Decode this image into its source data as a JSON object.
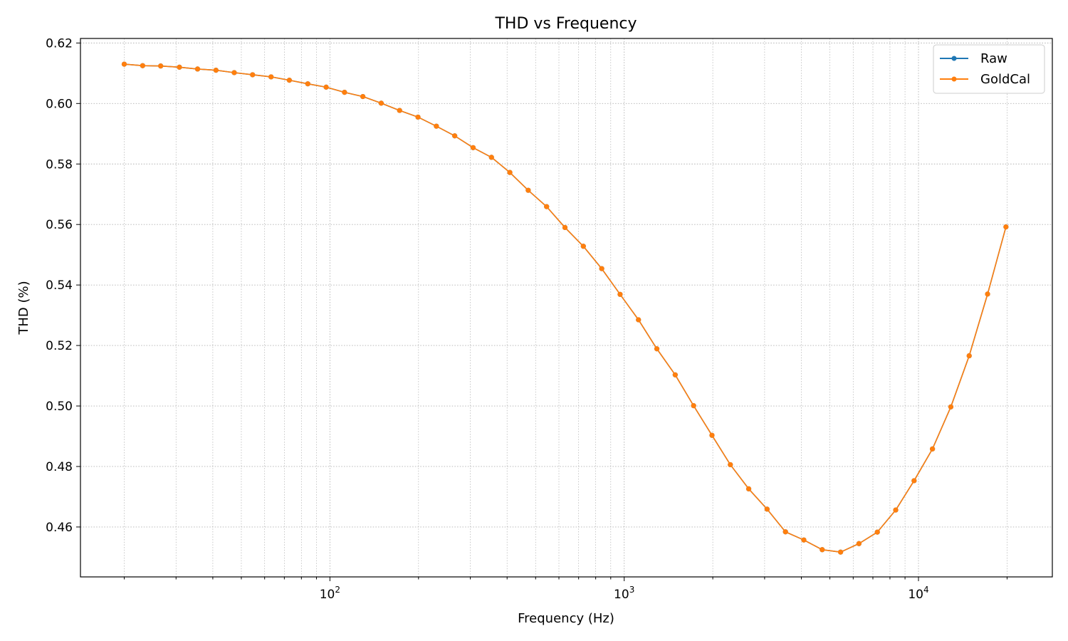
{
  "chart_data": {
    "type": "line",
    "title": "THD vs Frequency",
    "xlabel": "Frequency (Hz)",
    "ylabel": "THD (%)",
    "xscale": "log",
    "xlim": [
      14.2,
      28500
    ],
    "ylim": [
      0.4435,
      0.6215
    ],
    "grid": true,
    "legend_position": "top-right",
    "x_ticks": [
      {
        "value": 100,
        "base": "10",
        "exp": "2"
      },
      {
        "value": 1000,
        "base": "10",
        "exp": "3"
      },
      {
        "value": 10000,
        "base": "10",
        "exp": "4"
      }
    ],
    "y_ticks": [
      "0.46",
      "0.48",
      "0.50",
      "0.52",
      "0.54",
      "0.56",
      "0.58",
      "0.60",
      "0.62"
    ],
    "series": [
      {
        "name": "Raw",
        "color": "#1f77b4",
        "x": [
          20,
          23.1,
          26.6,
          30.8,
          35.5,
          41.0,
          47.3,
          54.6,
          63.1,
          72.8,
          84.1,
          97.1,
          112.1,
          129.4,
          149.4,
          172.5,
          199.2,
          230.0,
          265.5,
          306.6,
          354.0,
          408.7,
          471.9,
          544.9,
          629.1,
          726.4,
          838.7,
          968.4,
          1118.1,
          1291.0,
          1490.6,
          1721.1,
          1987.2,
          2294.5,
          2649.3,
          3058.8,
          3531.7,
          4077.8,
          4708.3,
          5436.2,
          6276.7,
          7247.2,
          8367.7,
          9661.4,
          11155.2,
          12880.0,
          14871.4,
          17170.7,
          19825.4
        ],
        "values": [
          0.613,
          0.6125,
          0.6124,
          0.612,
          0.6114,
          0.611,
          0.6102,
          0.6095,
          0.6088,
          0.6077,
          0.6065,
          0.6054,
          0.6037,
          0.6023,
          0.6001,
          0.5977,
          0.5955,
          0.5925,
          0.5893,
          0.5854,
          0.5822,
          0.5772,
          0.5713,
          0.5659,
          0.559,
          0.5528,
          0.5454,
          0.5369,
          0.5285,
          0.5189,
          0.5103,
          0.5001,
          0.4903,
          0.4806,
          0.4726,
          0.4659,
          0.4584,
          0.4557,
          0.4525,
          0.4517,
          0.4545,
          0.4583,
          0.4656,
          0.4753,
          0.4858,
          0.4997,
          0.5166,
          0.537,
          0.5592
        ]
      },
      {
        "name": "GoldCal",
        "color": "#ff7f0e",
        "x": [
          20,
          23.1,
          26.6,
          30.8,
          35.5,
          41.0,
          47.3,
          54.6,
          63.1,
          72.8,
          84.1,
          97.1,
          112.1,
          129.4,
          149.4,
          172.5,
          199.2,
          230.0,
          265.5,
          306.6,
          354.0,
          408.7,
          471.9,
          544.9,
          629.1,
          726.4,
          838.7,
          968.4,
          1118.1,
          1291.0,
          1490.6,
          1721.1,
          1987.2,
          2294.5,
          2649.3,
          3058.8,
          3531.7,
          4077.8,
          4708.3,
          5436.2,
          6276.7,
          7247.2,
          8367.7,
          9661.4,
          11155.2,
          12880.0,
          14871.4,
          17170.7,
          19825.4
        ],
        "values": [
          0.613,
          0.6125,
          0.6124,
          0.612,
          0.6114,
          0.611,
          0.6102,
          0.6095,
          0.6088,
          0.6077,
          0.6065,
          0.6054,
          0.6037,
          0.6023,
          0.6001,
          0.5977,
          0.5955,
          0.5925,
          0.5893,
          0.5854,
          0.5822,
          0.5772,
          0.5713,
          0.5659,
          0.559,
          0.5528,
          0.5454,
          0.5369,
          0.5285,
          0.5189,
          0.5103,
          0.5001,
          0.4903,
          0.4806,
          0.4726,
          0.4659,
          0.4584,
          0.4557,
          0.4525,
          0.4517,
          0.4545,
          0.4583,
          0.4656,
          0.4753,
          0.4858,
          0.4997,
          0.5166,
          0.537,
          0.5592
        ]
      }
    ],
    "colors": {
      "grid": "#b0b0b0",
      "axes": "#000000",
      "background": "#ffffff",
      "legend_border": "#cccccc"
    }
  }
}
